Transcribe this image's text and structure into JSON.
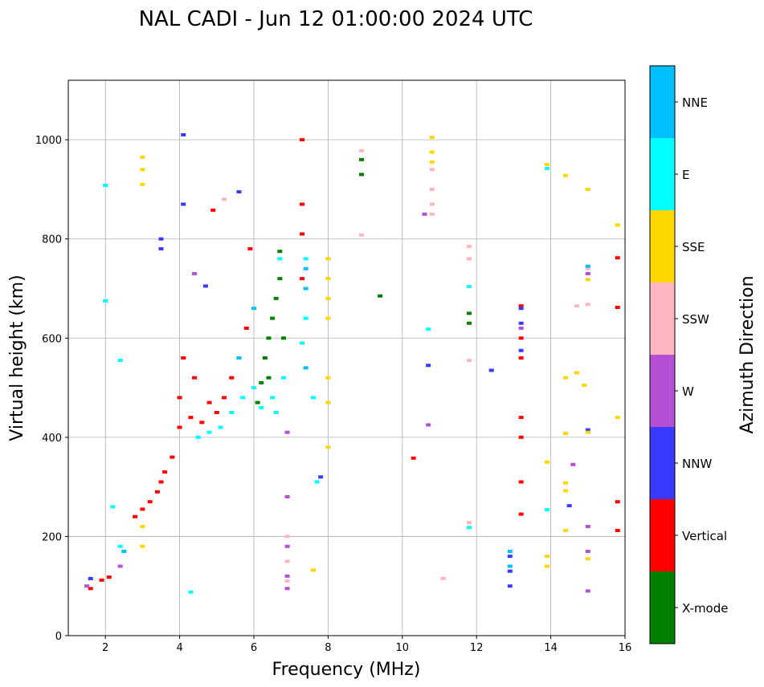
{
  "chart_data": {
    "type": "scatter",
    "title": "NAL CADI - Jun 12 01:00:00 2024 UTC",
    "xlabel": "Frequency (MHz)",
    "ylabel": "Virtual height (km)",
    "xlim": [
      1,
      16
    ],
    "ylim": [
      0,
      1120
    ],
    "xticks": [
      2,
      4,
      6,
      8,
      10,
      12,
      14,
      16
    ],
    "yticks": [
      0,
      200,
      400,
      600,
      800,
      1000
    ],
    "grid": true,
    "colorbar": {
      "title": "Azimuth Direction",
      "position": "right",
      "categories": [
        {
          "name": "X-mode",
          "color": "#008000"
        },
        {
          "name": "Vertical",
          "color": "#ff0000"
        },
        {
          "name": "NNW",
          "color": "#3a3aff"
        },
        {
          "name": "W",
          "color": "#b44fd6"
        },
        {
          "name": "SSW",
          "color": "#ffb6c1"
        },
        {
          "name": "SSE",
          "color": "#ffd700"
        },
        {
          "name": "E",
          "color": "#00ffff"
        },
        {
          "name": "NNE",
          "color": "#00bfff"
        }
      ]
    },
    "series": [
      {
        "name": "Vertical",
        "points": [
          [
            1.6,
            95
          ],
          [
            1.9,
            112
          ],
          [
            2.1,
            118
          ],
          [
            2.8,
            240
          ],
          [
            3.0,
            255
          ],
          [
            3.2,
            270
          ],
          [
            3.4,
            290
          ],
          [
            3.5,
            310
          ],
          [
            3.6,
            330
          ],
          [
            3.8,
            360
          ],
          [
            4.0,
            420
          ],
          [
            4.0,
            480
          ],
          [
            4.1,
            560
          ],
          [
            4.3,
            440
          ],
          [
            4.4,
            520
          ],
          [
            4.6,
            430
          ],
          [
            4.8,
            470
          ],
          [
            5.0,
            450
          ],
          [
            5.2,
            480
          ],
          [
            5.4,
            520
          ],
          [
            5.6,
            560
          ],
          [
            5.8,
            620
          ],
          [
            5.9,
            780
          ],
          [
            7.3,
            1000
          ],
          [
            7.3,
            870
          ],
          [
            7.3,
            810
          ],
          [
            7.3,
            720
          ],
          [
            13.2,
            665
          ],
          [
            13.2,
            600
          ],
          [
            13.2,
            560
          ],
          [
            13.2,
            440
          ],
          [
            13.2,
            400
          ],
          [
            13.2,
            310
          ],
          [
            13.2,
            245
          ],
          [
            15.8,
            762
          ],
          [
            15.8,
            662
          ],
          [
            15.8,
            270
          ],
          [
            15.8,
            212
          ],
          [
            4.9,
            858
          ],
          [
            10.3,
            358
          ]
        ]
      },
      {
        "name": "X-mode",
        "points": [
          [
            6.1,
            470
          ],
          [
            6.2,
            510
          ],
          [
            6.3,
            560
          ],
          [
            6.4,
            600
          ],
          [
            6.5,
            640
          ],
          [
            6.6,
            680
          ],
          [
            6.7,
            720
          ],
          [
            6.7,
            775
          ],
          [
            6.8,
            600
          ],
          [
            6.4,
            520
          ],
          [
            9.4,
            685
          ],
          [
            8.9,
            930
          ],
          [
            8.9,
            960
          ],
          [
            11.8,
            650
          ],
          [
            11.8,
            630
          ]
        ]
      },
      {
        "name": "NNW",
        "points": [
          [
            1.6,
            115
          ],
          [
            3.5,
            780
          ],
          [
            3.5,
            800
          ],
          [
            4.1,
            870
          ],
          [
            4.1,
            1010
          ],
          [
            4.7,
            705
          ],
          [
            5.6,
            895
          ],
          [
            7.8,
            320
          ],
          [
            10.7,
            545
          ],
          [
            12.4,
            535
          ],
          [
            13.2,
            660
          ],
          [
            13.2,
            630
          ],
          [
            13.2,
            575
          ],
          [
            12.9,
            160
          ],
          [
            12.9,
            130
          ],
          [
            12.9,
            100
          ],
          [
            14.5,
            262
          ],
          [
            15.0,
            415
          ]
        ]
      },
      {
        "name": "W",
        "points": [
          [
            1.5,
            100
          ],
          [
            2.4,
            140
          ],
          [
            6.9,
            410
          ],
          [
            6.9,
            280
          ],
          [
            6.9,
            180
          ],
          [
            6.9,
            120
          ],
          [
            6.9,
            95
          ],
          [
            10.7,
            425
          ],
          [
            10.6,
            850
          ],
          [
            13.2,
            620
          ],
          [
            14.6,
            345
          ],
          [
            15.0,
            220
          ],
          [
            15.0,
            170
          ],
          [
            15.0,
            90
          ],
          [
            15.0,
            730
          ],
          [
            4.4,
            730
          ]
        ]
      },
      {
        "name": "SSW",
        "points": [
          [
            6.9,
            200
          ],
          [
            6.9,
            150
          ],
          [
            6.9,
            110
          ],
          [
            8.9,
            808
          ],
          [
            8.9,
            978
          ],
          [
            10.8,
            940
          ],
          [
            10.8,
            900
          ],
          [
            10.8,
            870
          ],
          [
            10.8,
            850
          ],
          [
            11.1,
            115
          ],
          [
            11.8,
            785
          ],
          [
            11.8,
            760
          ],
          [
            11.8,
            555
          ],
          [
            11.8,
            228
          ],
          [
            14.7,
            665
          ],
          [
            15.0,
            668
          ],
          [
            15.0,
            740
          ],
          [
            5.2,
            880
          ]
        ]
      },
      {
        "name": "SSE",
        "points": [
          [
            3.0,
            965
          ],
          [
            3.0,
            940
          ],
          [
            3.0,
            910
          ],
          [
            3.0,
            220
          ],
          [
            3.0,
            180
          ],
          [
            7.6,
            132
          ],
          [
            8.0,
            760
          ],
          [
            8.0,
            720
          ],
          [
            8.0,
            680
          ],
          [
            8.0,
            640
          ],
          [
            8.0,
            520
          ],
          [
            8.0,
            470
          ],
          [
            8.0,
            380
          ],
          [
            10.8,
            1005
          ],
          [
            10.8,
            975
          ],
          [
            10.8,
            955
          ],
          [
            13.9,
            350
          ],
          [
            13.9,
            160
          ],
          [
            13.9,
            140
          ],
          [
            14.4,
            928
          ],
          [
            14.4,
            520
          ],
          [
            14.4,
            408
          ],
          [
            14.4,
            308
          ],
          [
            14.4,
            292
          ],
          [
            14.4,
            212
          ],
          [
            14.7,
            530
          ],
          [
            14.9,
            505
          ],
          [
            15.0,
            900
          ],
          [
            15.0,
            718
          ],
          [
            15.0,
            410
          ],
          [
            15.0,
            155
          ],
          [
            15.8,
            828
          ],
          [
            15.8,
            440
          ],
          [
            13.9,
            950
          ]
        ]
      },
      {
        "name": "E",
        "points": [
          [
            2.0,
            908
          ],
          [
            2.0,
            675
          ],
          [
            2.2,
            260
          ],
          [
            2.4,
            555
          ],
          [
            2.4,
            180
          ],
          [
            4.3,
            88
          ],
          [
            4.5,
            400
          ],
          [
            4.8,
            410
          ],
          [
            5.1,
            420
          ],
          [
            5.4,
            450
          ],
          [
            5.7,
            480
          ],
          [
            6.0,
            500
          ],
          [
            6.2,
            460
          ],
          [
            6.5,
            480
          ],
          [
            6.6,
            450
          ],
          [
            6.8,
            520
          ],
          [
            7.3,
            590
          ],
          [
            7.4,
            760
          ],
          [
            7.4,
            640
          ],
          [
            7.6,
            480
          ],
          [
            7.7,
            310
          ],
          [
            10.7,
            618
          ],
          [
            11.8,
            704
          ],
          [
            11.8,
            218
          ],
          [
            13.9,
            254
          ],
          [
            13.9,
            942
          ],
          [
            6.7,
            760
          ]
        ]
      },
      {
        "name": "NNE",
        "points": [
          [
            2.5,
            170
          ],
          [
            5.6,
            560
          ],
          [
            6.0,
            660
          ],
          [
            7.4,
            740
          ],
          [
            7.4,
            700
          ],
          [
            7.4,
            540
          ],
          [
            12.9,
            170
          ],
          [
            12.9,
            140
          ],
          [
            15.0,
            745
          ]
        ]
      }
    ]
  }
}
